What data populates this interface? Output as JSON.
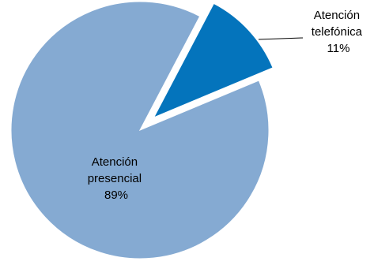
{
  "chart_data": {
    "type": "pie",
    "categories": [
      "Atención presencial",
      "Atención telefónica"
    ],
    "values": [
      89,
      11
    ],
    "unit": "%",
    "exploded": [
      "Atención telefónica"
    ],
    "colors": [
      "#85AAD2",
      "#0474BC"
    ],
    "legend": "none",
    "labels": [
      {
        "line1": "Atención",
        "line2": "presencial",
        "line3": "89%"
      },
      {
        "line1": "Atención",
        "line2": "telefónica",
        "line3": "11%"
      }
    ]
  }
}
